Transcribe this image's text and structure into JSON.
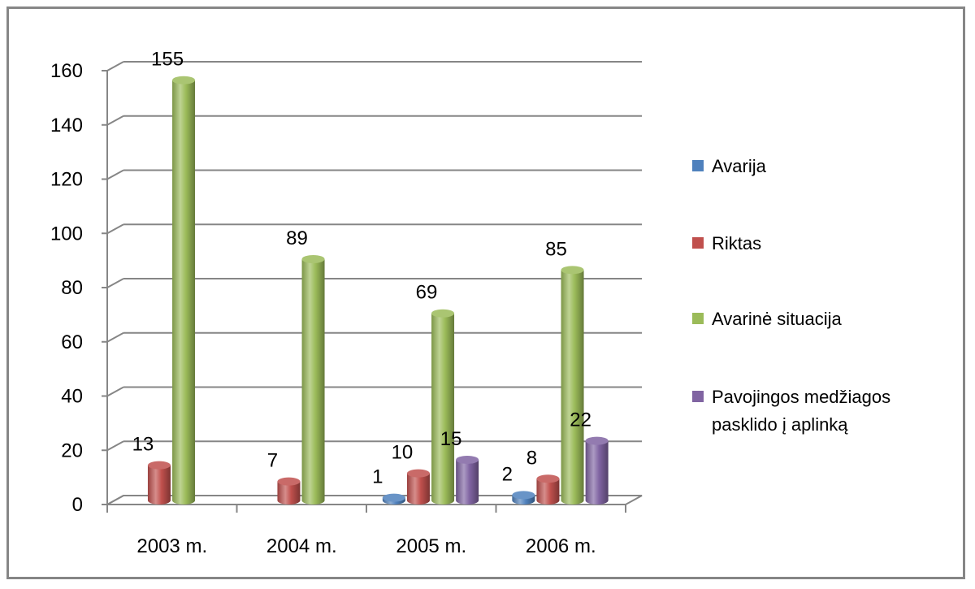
{
  "chart_data": {
    "type": "bar",
    "categories": [
      "2003 m.",
      "2004 m.",
      "2005 m.",
      "2006 m."
    ],
    "series": [
      {
        "name": "Avarija",
        "color": "#4F81BD",
        "values": [
          0,
          0,
          1,
          2
        ]
      },
      {
        "name": "Riktas",
        "color": "#C0504D",
        "values": [
          13,
          7,
          10,
          8
        ]
      },
      {
        "name": "Avarinė situacija",
        "color": "#9BBB59",
        "values": [
          155,
          89,
          69,
          85
        ]
      },
      {
        "name": "Pavojingos medžiagos pasklido į aplinką",
        "color": "#8064A2",
        "values": [
          0,
          0,
          15,
          22
        ]
      }
    ],
    "data_labels": [
      [
        null,
        null,
        "1",
        "2"
      ],
      [
        "13",
        "7",
        "10",
        "8"
      ],
      [
        "155",
        "89",
        "69",
        "85"
      ],
      [
        null,
        null,
        "15",
        "22"
      ]
    ],
    "yticks": [
      "0",
      "20",
      "40",
      "60",
      "80",
      "100",
      "120",
      "140",
      "160"
    ],
    "ylim": [
      0,
      160
    ],
    "grid": true,
    "legend_position": "right",
    "style": "3d-cylinder"
  }
}
